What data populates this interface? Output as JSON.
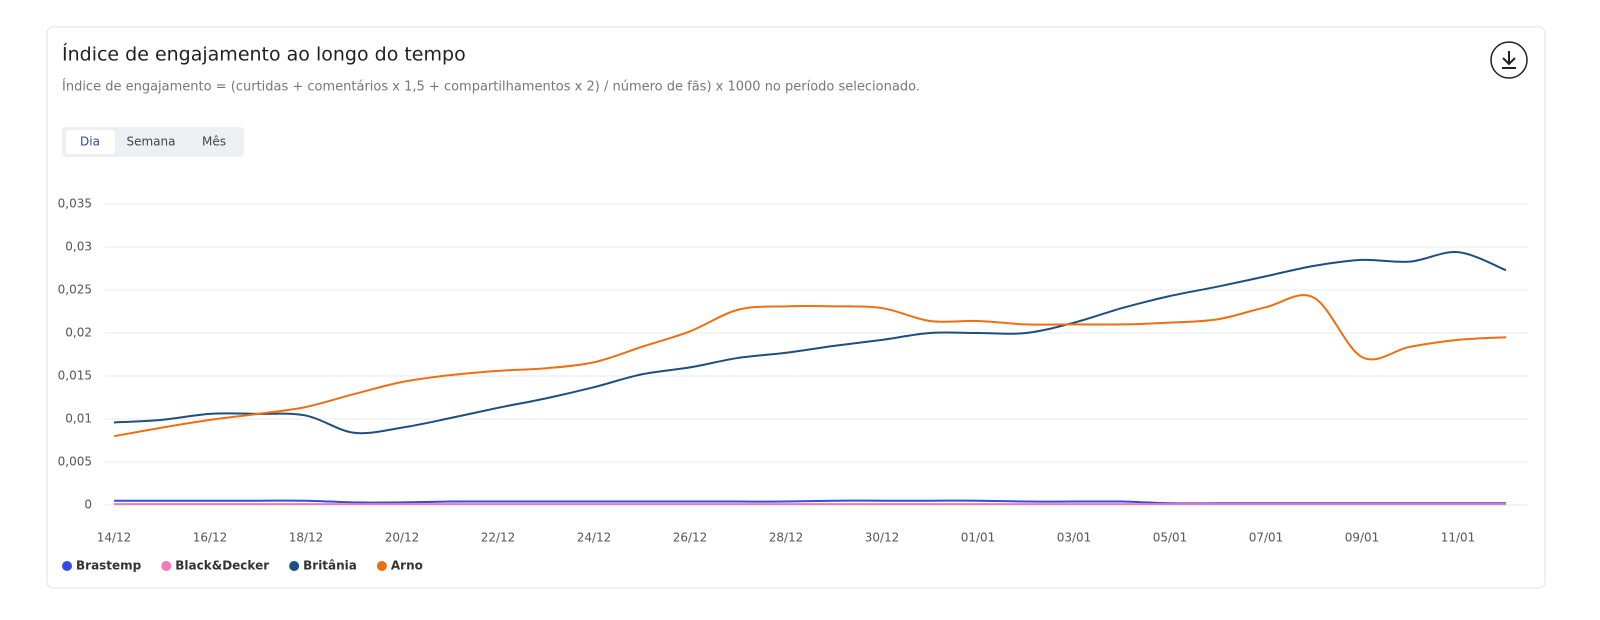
{
  "tabs": [
    "Dia",
    "Semana",
    "Mês"
  ],
  "chart_data": {
    "type": "line",
    "title": "Índice de engajamento ao longo do tempo",
    "subtitle": "Índice de engajamento = (curtidas + comentários x 1,5 + compartilhamentos x 2) / número de fãs) x 1000 no período selecionado.",
    "categories": [
      "14/12",
      null,
      "16/12",
      null,
      "18/12",
      null,
      "20/12",
      null,
      "22/12",
      null,
      "24/12",
      null,
      "26/12",
      null,
      "28/12",
      null,
      "30/12",
      null,
      "01/01",
      null,
      "03/01",
      null,
      "05/01",
      null,
      "07/01",
      null,
      "09/01",
      null,
      "11/01",
      null
    ],
    "ylim": [
      0,
      0.035
    ],
    "yticks": [
      0,
      {
        "value": 0.005,
        "label": "0,005"
      },
      {
        "value": 0.01,
        "label": "0,01"
      },
      {
        "value": 0.015,
        "label": "0,015"
      },
      {
        "value": 0.02,
        "label": "0,02"
      },
      {
        "value": 0.025,
        "label": "0,025"
      },
      {
        "value": 0.03,
        "label": "0,03"
      },
      {
        "value": 0.035,
        "label": "0,035"
      }
    ],
    "grid": true,
    "legend": "bottom-left",
    "series": [
      {
        "name": "Brastemp",
        "color": "#2f4de0",
        "values": [
          0.0005,
          0.0005,
          0.0005,
          0.0005,
          0.0005,
          0.0003,
          0.0003,
          0.0004,
          0.0004,
          0.0004,
          0.0004,
          0.0004,
          0.0004,
          0.0004,
          0.0004,
          0.0005,
          0.0005,
          0.0005,
          0.0005,
          0.0004,
          0.0004,
          0.0004,
          0.0002,
          0.0002,
          0.0002,
          0.0002,
          0.0002,
          0.0002,
          0.0002,
          0.0002
        ]
      },
      {
        "name": "Black&Decker",
        "color": "#f07ab5",
        "values": [
          0.0001,
          0.0001,
          0.0001,
          0.0001,
          0.0001,
          0.0001,
          0.0001,
          0.0001,
          0.0001,
          0.0001,
          0.0001,
          0.0001,
          0.0001,
          0.0001,
          0.0001,
          0.0001,
          0.0001,
          0.0001,
          0.0001,
          0.0001,
          0.0001,
          0.0001,
          0.0001,
          0.0001,
          0.0001,
          0.0001,
          0.0001,
          0.0001,
          0.0001,
          0.0001
        ]
      },
      {
        "name": "Britânia",
        "color": "#1c4f80",
        "values": [
          0.0096,
          0.0099,
          0.0106,
          0.0106,
          0.0104,
          0.0084,
          0.009,
          0.0101,
          0.0113,
          0.0124,
          0.0137,
          0.0152,
          0.016,
          0.0171,
          0.0177,
          0.0185,
          0.0192,
          0.02,
          0.02,
          0.02,
          0.0212,
          0.0229,
          0.0243,
          0.0254,
          0.0266,
          0.0278,
          0.0285,
          0.0283,
          0.0294,
          0.0273
        ]
      },
      {
        "name": "Arno",
        "color": "#f06e12",
        "values": [
          0.008,
          0.009,
          0.0099,
          0.0106,
          0.0114,
          0.0129,
          0.0143,
          0.0151,
          0.0156,
          0.0159,
          0.0166,
          0.0184,
          0.0202,
          0.0227,
          0.0231,
          0.0231,
          0.0229,
          0.0214,
          0.0214,
          0.021,
          0.021,
          0.021,
          0.0212,
          0.0216,
          0.023,
          0.0241,
          0.0172,
          0.0184,
          0.0192,
          0.0195
        ]
      }
    ]
  }
}
